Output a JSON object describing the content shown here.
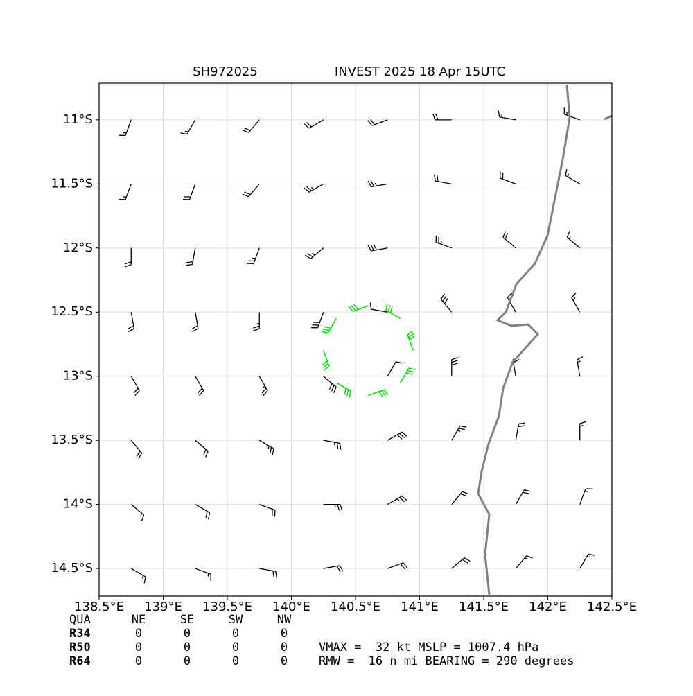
{
  "chart_data": {
    "type": "barbs",
    "title": "SH972025",
    "subtitle": "INVEST 2025 18 Apr 15UTC",
    "xlim": [
      138.5,
      142.5
    ],
    "ylim": [
      -14.716,
      -10.714
    ],
    "xticks": [
      {
        "value": 138.5,
        "label": "138.5°E"
      },
      {
        "value": 139,
        "label": "139°E"
      },
      {
        "value": 139.5,
        "label": "139.5°E"
      },
      {
        "value": 140,
        "label": "140°E"
      },
      {
        "value": 140.5,
        "label": "140.5°E"
      },
      {
        "value": 141,
        "label": "141°E"
      },
      {
        "value": 141.5,
        "label": "141.5°E"
      },
      {
        "value": 142,
        "label": "142°E"
      },
      {
        "value": 142.5,
        "label": "142.5°E"
      }
    ],
    "yticks": [
      {
        "value": -11,
        "label": "11°S"
      },
      {
        "value": -11.5,
        "label": "11.5°S"
      },
      {
        "value": -12,
        "label": "12°S"
      },
      {
        "value": -12.5,
        "label": "12.5°S"
      },
      {
        "value": -13,
        "label": "13°S"
      },
      {
        "value": -13.5,
        "label": "13.5°S"
      },
      {
        "value": -14,
        "label": "14°S"
      },
      {
        "value": -14.5,
        "label": "14.5°S"
      }
    ],
    "grid": true,
    "barbs": {
      "color": "#000000",
      "lons": [
        138.75,
        139.25,
        139.75,
        140.25,
        140.75,
        141.25,
        141.75,
        142.25
      ],
      "lats": [
        -11,
        -11.5,
        -12,
        -12.5,
        -13,
        -13.5,
        -14,
        -14.5
      ],
      "directions": [
        [
          200,
          210,
          220,
          240,
          250,
          270,
          280,
          290
        ],
        [
          200,
          200,
          220,
          240,
          260,
          280,
          290,
          300
        ],
        [
          180,
          190,
          200,
          230,
          260,
          290,
          310,
          310
        ],
        [
          170,
          170,
          180,
          200,
          280,
          320,
          330,
          330
        ],
        [
          150,
          150,
          150,
          130,
          30,
          360,
          350,
          350
        ],
        [
          140,
          130,
          120,
          100,
          60,
          30,
          10,
          0
        ],
        [
          130,
          120,
          110,
          90,
          60,
          40,
          30,
          20
        ],
        [
          120,
          110,
          100,
          80,
          70,
          50,
          40,
          30
        ]
      ],
      "speeds": [
        [
          15,
          15,
          20,
          20,
          20,
          20,
          15,
          15
        ],
        [
          15,
          20,
          20,
          25,
          25,
          20,
          20,
          15
        ],
        [
          20,
          20,
          25,
          25,
          30,
          25,
          20,
          15
        ],
        [
          20,
          20,
          25,
          30,
          10,
          30,
          20,
          15
        ],
        [
          20,
          20,
          25,
          30,
          10,
          30,
          20,
          15
        ],
        [
          20,
          20,
          25,
          25,
          30,
          25,
          20,
          15
        ],
        [
          15,
          20,
          20,
          25,
          25,
          20,
          20,
          15
        ],
        [
          15,
          15,
          20,
          20,
          20,
          20,
          15,
          15
        ]
      ]
    },
    "strong_barbs": {
      "color": "#00e000",
      "lons": [
        140.6,
        140.85,
        140.95,
        140.85,
        140.6,
        140.35,
        140.25,
        140.35
      ],
      "lats": [
        -12.45,
        -12.55,
        -12.8,
        -13.05,
        -13.15,
        -13.05,
        -12.8,
        -12.55
      ],
      "directions": [
        250,
        300,
        340,
        30,
        70,
        120,
        160,
        210
      ],
      "speeds": [
        30,
        30,
        30,
        30,
        30,
        30,
        30,
        30
      ]
    },
    "coast_color": "#808080"
  },
  "quadrant_table": {
    "header": [
      "QUA",
      "NE",
      "SE",
      "SW",
      "NW"
    ],
    "rows": [
      [
        "R34",
        0,
        0,
        0,
        0
      ],
      [
        "R50",
        0,
        0,
        0,
        0
      ],
      [
        "R64",
        0,
        0,
        0,
        0
      ]
    ]
  },
  "summary": [
    "VMAX =  32 kt MSLP = 1007.4 hPa",
    "RMW =  16 n mi BEARING = 290 degrees"
  ]
}
